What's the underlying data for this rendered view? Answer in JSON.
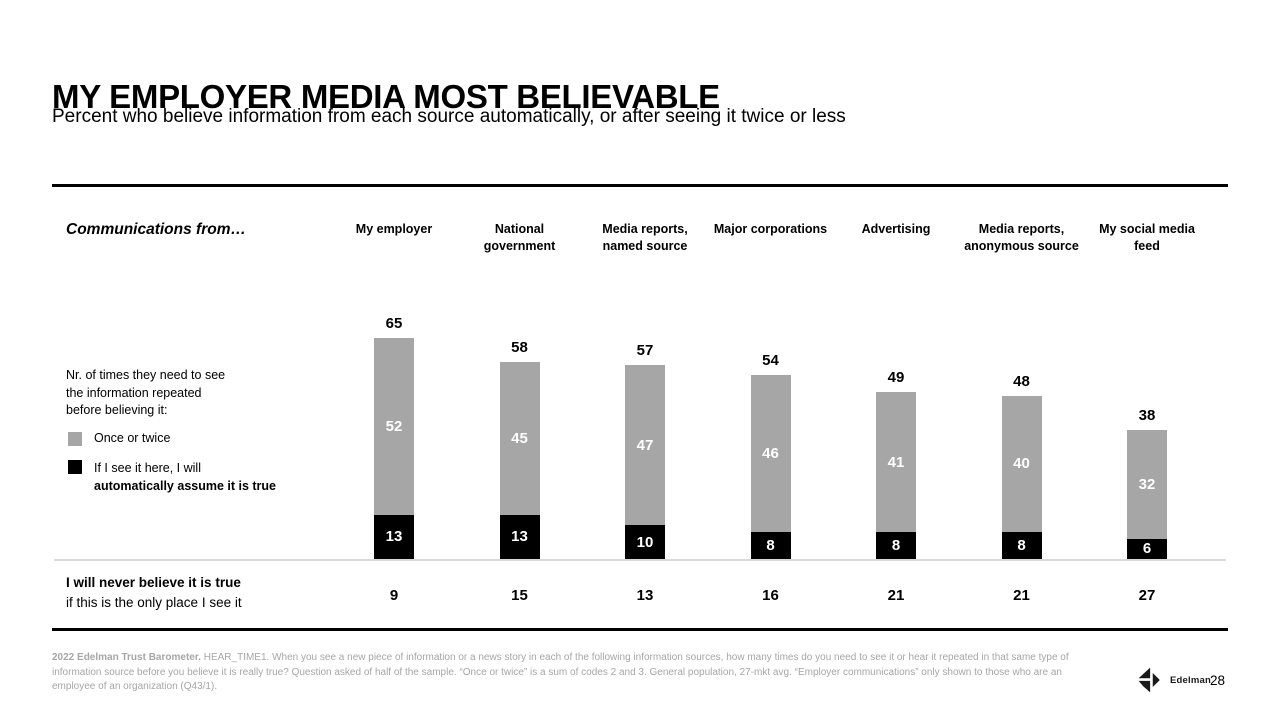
{
  "header": {
    "title": "MY EMPLOYER MEDIA MOST BELIEVABLE",
    "subtitle": "Percent who believe information from each source automatically, or after seeing it twice or less"
  },
  "chart_data": {
    "type": "bar",
    "stacked": true,
    "row_label": "Communications from…",
    "categories": [
      "My employer",
      "National government",
      "Media reports, named source",
      "Major corporations",
      "Advertising",
      "Media reports, anonymous source",
      "My social media feed"
    ],
    "totals": [
      65,
      58,
      57,
      54,
      49,
      48,
      38
    ],
    "series": [
      {
        "name": "Once or twice",
        "color": "#a6a6a6",
        "values": [
          52,
          45,
          47,
          46,
          41,
          40,
          32
        ]
      },
      {
        "name": "If I see it here, I will automatically assume it is true",
        "color": "#000000",
        "values": [
          13,
          13,
          10,
          8,
          8,
          8,
          6
        ]
      }
    ],
    "never_row": {
      "label_bold": "I will never believe it is true",
      "label_regular": "if this is the only place I see it",
      "values": [
        9,
        15,
        13,
        16,
        21,
        21,
        27
      ]
    },
    "legend": {
      "intro_lines": [
        "Nr. of times they need to see",
        "the information repeated",
        "before believing it:"
      ],
      "items": [
        {
          "label": "If I see it here, I will",
          "label_bold": "automatically assume it is true"
        }
      ]
    },
    "ylim": [
      0,
      65
    ],
    "grid": false,
    "legend_position": "left"
  },
  "footer": {
    "source_bold": "2022 Edelman Trust Barometer.",
    "source_text": " HEAR_TIME1. When you see a new piece of information or a news story in each of the following information sources, how many times do you need to see it or hear it repeated in that same type of information source before you believe it is really true? Question asked of half of the sample. “Once or twice” is a sum of codes 2 and 3. General population, 27-mkt avg. “Employer communications” only shown to those who are an employee of an organization (Q43/1).",
    "logo_text": "Edelman",
    "page_number": "28"
  }
}
